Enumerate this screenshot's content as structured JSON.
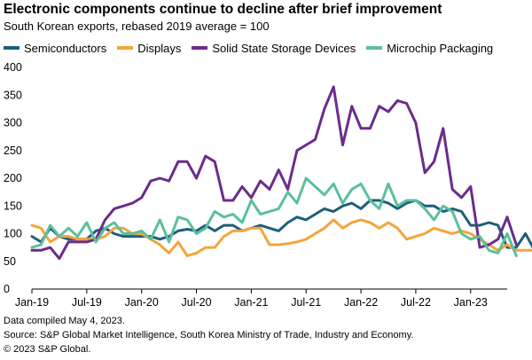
{
  "chart_data": {
    "type": "line",
    "title": "Electronic components continue to decline after brief improvement",
    "subtitle": "South Korean exports, rebased 2019 average = 100",
    "xlabel": "",
    "ylabel": "",
    "ylim": [
      0,
      400
    ],
    "yticks": [
      0,
      50,
      100,
      150,
      200,
      250,
      300,
      350,
      400
    ],
    "xlim": [
      0,
      52
    ],
    "xticks": [
      {
        "pos": 0,
        "label": "Jan-19"
      },
      {
        "pos": 6,
        "label": "Jul-19"
      },
      {
        "pos": 12,
        "label": "Jan-20"
      },
      {
        "pos": 18,
        "label": "Jul-20"
      },
      {
        "pos": 24,
        "label": "Jan-21"
      },
      {
        "pos": 30,
        "label": "Jul-21"
      },
      {
        "pos": 36,
        "label": "Jan-22"
      },
      {
        "pos": 42,
        "label": "Jul-22"
      },
      {
        "pos": 48,
        "label": "Jan-23"
      }
    ],
    "grid": false,
    "series": [
      {
        "name": "Semiconductors",
        "color": "#1f5f7a",
        "values": [
          95,
          85,
          110,
          95,
          90,
          90,
          90,
          105,
          110,
          100,
          95,
          95,
          95,
          95,
          90,
          95,
          105,
          108,
          105,
          115,
          105,
          115,
          115,
          105,
          110,
          115,
          110,
          105,
          120,
          130,
          125,
          135,
          145,
          140,
          150,
          155,
          145,
          160,
          160,
          155,
          145,
          155,
          160,
          150,
          150,
          140,
          145,
          140,
          115,
          115,
          120,
          115,
          75,
          75,
          100,
          70
        ]
      },
      {
        "name": "Displays",
        "color": "#f5a43a",
        "values": [
          115,
          110,
          85,
          95,
          95,
          90,
          90,
          90,
          95,
          110,
          110,
          100,
          100,
          90,
          80,
          65,
          85,
          60,
          65,
          75,
          75,
          95,
          105,
          105,
          110,
          110,
          80,
          80,
          82,
          85,
          90,
          100,
          110,
          125,
          110,
          120,
          125,
          120,
          110,
          120,
          110,
          90,
          95,
          100,
          110,
          105,
          100,
          105,
          100,
          90,
          80,
          70,
          80,
          70,
          70,
          70
        ]
      },
      {
        "name": "Solid State Storage Devices",
        "color": "#6b2c8c",
        "values": [
          70,
          70,
          75,
          55,
          85,
          85,
          85,
          90,
          125,
          145,
          150,
          155,
          165,
          195,
          200,
          195,
          230,
          230,
          200,
          240,
          230,
          160,
          160,
          185,
          165,
          195,
          180,
          215,
          180,
          250,
          260,
          270,
          325,
          365,
          260,
          330,
          290,
          290,
          330,
          320,
          340,
          335,
          300,
          210,
          230,
          290,
          180,
          165,
          185,
          75,
          80,
          90,
          130,
          80
        ]
      },
      {
        "name": "Microchip Packaging",
        "color": "#5bbf9e",
        "values": [
          75,
          80,
          115,
          95,
          110,
          95,
          120,
          85,
          110,
          120,
          100,
          100,
          105,
          90,
          125,
          85,
          130,
          125,
          100,
          110,
          140,
          130,
          135,
          120,
          160,
          135,
          140,
          145,
          175,
          155,
          200,
          185,
          170,
          190,
          155,
          180,
          190,
          160,
          145,
          190,
          150,
          160,
          160,
          145,
          125,
          150,
          140,
          100,
          90,
          95,
          70,
          65,
          100,
          60
        ]
      }
    ]
  },
  "notes": {
    "compiled": "Data compiled May 4, 2023.",
    "source": "Source: S&P Global Market Intelligence, South Korea Ministry of Trade, Industry and Economy.",
    "copyright": "© 2023 S&P Global."
  }
}
